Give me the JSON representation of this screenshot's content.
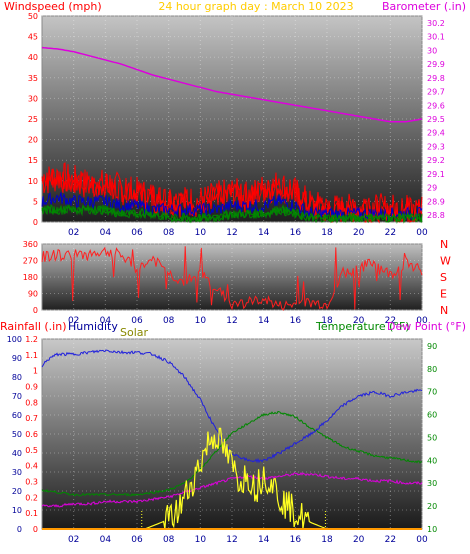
{
  "title": "24 hour graph day : March 10 2023",
  "colors": {
    "wind": "#ff0000",
    "gust_mid": "#0000cc",
    "gust_low": "#008800",
    "barometer": "#dd00dd",
    "direction": "#ff2020",
    "humidity": "#2020dd",
    "solar": "#ffff22",
    "temperature": "#008800",
    "dewpoint": "#dd00dd",
    "rain": "#ff9900",
    "title": "#ffcc00",
    "label_red": "#ff0000",
    "label_navy": "#000099",
    "label_olive": "#888800",
    "label_green": "#008800",
    "label_magenta": "#dd00dd"
  },
  "chart_data": [
    {
      "type": "line",
      "title": "24 hour graph day : March 10 2023",
      "left_label": "Windspeed (mph)",
      "right_label": "Barometer (.in)",
      "x_ticks": [
        "02",
        "04",
        "06",
        "08",
        "10",
        "12",
        "14",
        "16",
        "18",
        "20",
        "22",
        "00"
      ],
      "x_range": [
        0,
        24
      ],
      "left_ticks": [
        "0",
        "5",
        "10",
        "15",
        "20",
        "25",
        "30",
        "35",
        "40",
        "45",
        "50"
      ],
      "left_range": [
        0,
        50
      ],
      "right_ticks": [
        "28.8",
        "28.9",
        "29",
        "29.1",
        "29.2",
        "29.3",
        "29.4",
        "29.5",
        "29.6",
        "29.7",
        "29.8",
        "29.9",
        "30",
        "30.1",
        "30.2"
      ],
      "right_range": [
        28.75,
        30.25
      ],
      "series": [
        {
          "key": "gust",
          "x": [
            0,
            1,
            2,
            3,
            4,
            5,
            6,
            7,
            8,
            9,
            10,
            11,
            12,
            13,
            14,
            15,
            16,
            17,
            18,
            19,
            20,
            21,
            22,
            23,
            24
          ],
          "values": [
            10,
            11,
            10,
            9,
            9,
            8,
            7,
            6,
            5,
            5,
            5,
            6,
            7,
            6,
            8,
            9,
            7,
            4,
            3,
            3,
            3,
            3,
            3,
            3,
            3
          ]
        },
        {
          "key": "mid",
          "x": [
            0,
            1,
            2,
            3,
            4,
            5,
            6,
            7,
            8,
            9,
            10,
            11,
            12,
            13,
            14,
            15,
            16,
            17,
            18,
            19,
            20,
            21,
            22,
            23,
            24
          ],
          "values": [
            5,
            6,
            5,
            5,
            5,
            4,
            4,
            3,
            3,
            3,
            3,
            3,
            4,
            4,
            4,
            5,
            4,
            2,
            2,
            2,
            2,
            2,
            2,
            2,
            2
          ]
        },
        {
          "key": "low",
          "x": [
            0,
            1,
            2,
            3,
            4,
            5,
            6,
            7,
            8,
            9,
            10,
            11,
            12,
            13,
            14,
            15,
            16,
            17,
            18,
            19,
            20,
            21,
            22,
            23,
            24
          ],
          "values": [
            3,
            3,
            3,
            3,
            3,
            2,
            2,
            2,
            1,
            1,
            1,
            1,
            2,
            2,
            2,
            3,
            2,
            1,
            1,
            1,
            1,
            1,
            1,
            1,
            1
          ]
        },
        {
          "key": "baro",
          "x": [
            0,
            1,
            2,
            3,
            4,
            5,
            6,
            7,
            8,
            9,
            10,
            11,
            12,
            13,
            14,
            15,
            16,
            17,
            18,
            19,
            20,
            21,
            22,
            23,
            24
          ],
          "values": [
            30.02,
            30.01,
            29.99,
            29.96,
            29.93,
            29.9,
            29.86,
            29.82,
            29.79,
            29.76,
            29.73,
            29.7,
            29.68,
            29.66,
            29.64,
            29.62,
            29.6,
            29.58,
            29.56,
            29.54,
            29.52,
            29.5,
            29.48,
            29.48,
            29.5
          ]
        }
      ]
    },
    {
      "type": "line",
      "y_ticks": [
        "0",
        "90",
        "180",
        "270",
        "360"
      ],
      "y_range": [
        0,
        360
      ],
      "right_labels": [
        "N",
        "W",
        "S",
        "E",
        "N"
      ],
      "series": [
        {
          "key": "direction",
          "x": [
            0,
            1,
            2,
            3,
            4,
            5,
            6,
            7,
            8,
            9,
            10,
            11,
            12,
            13,
            14,
            15,
            16,
            17,
            18,
            19,
            20,
            21,
            22,
            23,
            24
          ],
          "values": [
            290,
            300,
            300,
            310,
            320,
            300,
            220,
            280,
            200,
            150,
            200,
            120,
            30,
            40,
            60,
            20,
            30,
            40,
            30,
            200,
            230,
            260,
            190,
            260,
            220
          ]
        }
      ]
    },
    {
      "type": "line",
      "rain_label": "Rainfall (.in)",
      "humidity_label": "Humidity",
      "solar_label": "Solar",
      "temperature_label": "Temperature (°F)",
      "dewpoint_label": "Dew Point (°F)",
      "rain_ticks": [
        "0",
        "0.1",
        "0.2",
        "0.3",
        "0.4",
        "0.5",
        "0.6",
        "0.7",
        "0.8",
        "0.9",
        "1",
        "1.1",
        "1.2"
      ],
      "rain_range": [
        0,
        1.2
      ],
      "humidity_ticks": [
        "0",
        "10",
        "20",
        "30",
        "40",
        "50",
        "60",
        "70",
        "80",
        "90",
        "100"
      ],
      "humidity_range": [
        0,
        100
      ],
      "temp_ticks": [
        "10",
        "20",
        "30",
        "40",
        "50",
        "60",
        "70",
        "80",
        "90"
      ],
      "temp_range": [
        10,
        93
      ],
      "x_ticks": [
        "02",
        "04",
        "06",
        "08",
        "10",
        "12",
        "14",
        "16",
        "18",
        "20",
        "22",
        "00"
      ],
      "x_range": [
        0,
        24
      ],
      "series": [
        {
          "key": "humidity",
          "x": [
            0,
            0.5,
            1,
            2,
            3,
            4,
            5,
            6,
            7,
            8,
            9,
            10,
            10.5,
            11,
            11.5,
            12,
            12.5,
            13,
            14,
            15,
            16,
            17,
            18,
            19,
            20,
            21,
            22,
            23,
            24
          ],
          "values": [
            86,
            90,
            92,
            92,
            93,
            94,
            93,
            93,
            92,
            88,
            80,
            68,
            60,
            52,
            45,
            40,
            38,
            36,
            36,
            40,
            45,
            50,
            57,
            65,
            70,
            72,
            70,
            72,
            73
          ]
        },
        {
          "key": "temperature",
          "x": [
            0,
            1,
            2,
            3,
            4,
            5,
            6,
            7,
            8,
            9,
            10,
            11,
            12,
            13,
            14,
            15,
            16,
            17,
            18,
            19,
            20,
            21,
            22,
            23,
            24
          ],
          "values": [
            27,
            26,
            25,
            25,
            25,
            25,
            25,
            26,
            27,
            30,
            36,
            44,
            52,
            56,
            60,
            61,
            59,
            54,
            50,
            46,
            44,
            42,
            41,
            40,
            39
          ]
        },
        {
          "key": "dewpoint",
          "x": [
            0,
            1,
            2,
            3,
            4,
            5,
            6,
            7,
            8,
            9,
            10,
            11,
            12,
            13,
            14,
            15,
            16,
            17,
            18,
            19,
            20,
            21,
            22,
            23,
            24
          ],
          "values": [
            20,
            20,
            21,
            21,
            22,
            22,
            22,
            23,
            24,
            26,
            28,
            30,
            32,
            33,
            32,
            33,
            34,
            34,
            33,
            32,
            32,
            31,
            31,
            30,
            30
          ]
        },
        {
          "key": "solar",
          "x": [
            0,
            6,
            6.5,
            7,
            8,
            8.5,
            9,
            9.5,
            10,
            10.5,
            11,
            11.5,
            12,
            12.5,
            13,
            13.5,
            14,
            14.5,
            15,
            16,
            17,
            18,
            24
          ],
          "values": [
            0,
            0,
            0,
            0.02,
            0.06,
            0.1,
            0.2,
            0.3,
            0.42,
            0.55,
            0.6,
            0.5,
            0.4,
            0.3,
            0.35,
            0.25,
            0.35,
            0.3,
            0.2,
            0.1,
            0.04,
            0,
            0
          ]
        },
        {
          "key": "rain",
          "x": [
            0,
            24
          ],
          "values": [
            0,
            0
          ]
        }
      ]
    }
  ]
}
